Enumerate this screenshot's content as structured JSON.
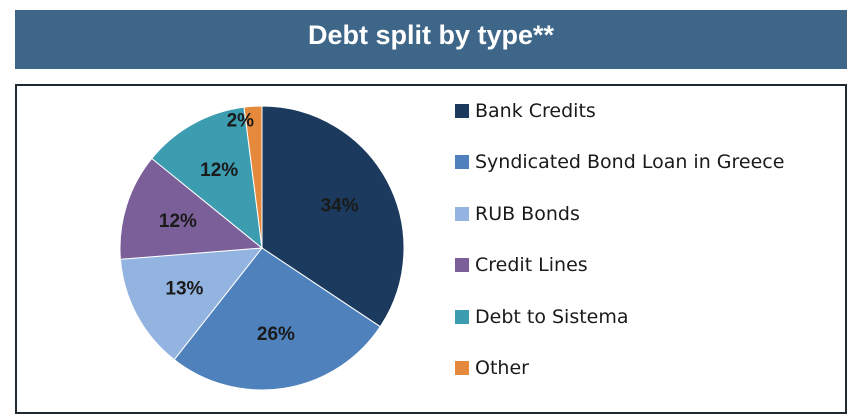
{
  "header": {
    "title": "Debt split by type**"
  },
  "colors": {
    "header_bg": "#3e6688"
  },
  "chart_data": {
    "type": "pie",
    "title": "Debt split by type**",
    "legend_position": "right",
    "slices": [
      {
        "label": "Bank Credits",
        "value": 34,
        "display": "34%",
        "color": "#1b3a5e"
      },
      {
        "label": "Syndicated Bond Loan in Greece",
        "value": 26,
        "display": "26%",
        "color": "#4f81bd"
      },
      {
        "label": "RUB Bonds",
        "value": 13,
        "display": "13%",
        "color": "#93b3e0"
      },
      {
        "label": "Credit Lines",
        "value": 12,
        "display": "12%",
        "color": "#7a5f99"
      },
      {
        "label": "Debt to Sistema",
        "value": 12,
        "display": "12%",
        "color": "#3c9cb0"
      },
      {
        "label": "Other",
        "value": 2,
        "display": "2%",
        "color": "#e5893c"
      }
    ]
  }
}
